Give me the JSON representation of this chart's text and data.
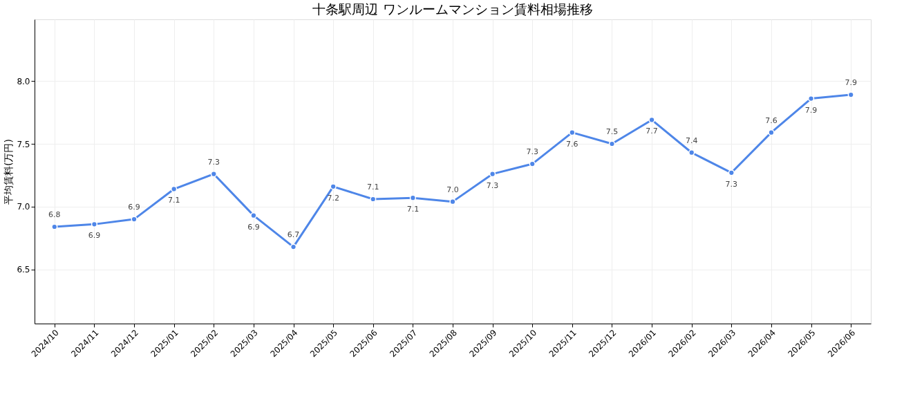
{
  "chart_data": {
    "type": "line",
    "title": "十条駅周辺 ワンルームマンション賃料相場推移",
    "ylabel": "平均賃料(万円)",
    "categories": [
      "2024/10",
      "2024/11",
      "2024/12",
      "2025/01",
      "2025/02",
      "2025/03",
      "2025/04",
      "2025/05",
      "2025/06",
      "2025/07",
      "2025/08",
      "2025/09",
      "2025/10",
      "2025/11",
      "2025/12",
      "2026/01",
      "2026/02",
      "2026/03",
      "2026/04",
      "2026/05",
      "2026/06"
    ],
    "series": [
      {
        "color": "#4e86e8",
        "values": [
          6.84,
          6.86,
          6.9,
          7.14,
          7.26,
          6.93,
          6.68,
          7.16,
          7.06,
          7.07,
          7.04,
          7.26,
          7.34,
          7.59,
          7.5,
          7.69,
          7.43,
          7.27,
          7.59,
          7.86,
          7.89
        ],
        "value_labels": [
          "6.8",
          "6.9",
          "6.9",
          "7.1",
          "7.3",
          "6.9",
          "6.7",
          "7.2",
          "7.1",
          "7.1",
          "7.0",
          "7.3",
          "7.3",
          "7.6",
          "7.5",
          "7.7",
          "7.4",
          "7.3",
          "7.6",
          "7.9",
          "7.9"
        ]
      }
    ],
    "ylim": [
      6.07,
      8.49
    ],
    "yticks": [
      {
        "value": 6.5,
        "label": "6.5"
      },
      {
        "value": 7.0,
        "label": "7.0"
      },
      {
        "value": 7.5,
        "label": "7.5"
      },
      {
        "value": 8.0,
        "label": "8.0"
      }
    ],
    "grid": true,
    "marker": "circle",
    "line_style": "solid"
  }
}
